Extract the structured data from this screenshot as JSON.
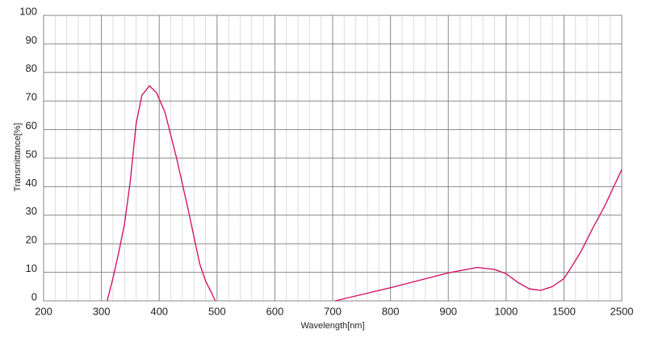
{
  "chart_data": {
    "type": "line",
    "x_label": "Wavelength[nm]",
    "y_label": "Transmittance[%]",
    "x_scale": "segmented",
    "x": [
      310,
      320,
      330,
      340,
      350,
      360,
      370,
      383,
      395,
      410,
      430,
      450,
      470,
      480,
      490,
      497,
      null,
      704,
      800,
      900,
      950,
      980,
      1000,
      1100,
      1200,
      1300,
      1400,
      1500,
      1650,
      1800,
      2000,
      2200,
      2500
    ],
    "series": [
      {
        "color": "#d0176b",
        "values": [
          0,
          8,
          17,
          27,
          42,
          62,
          72,
          75.3,
          73,
          66,
          50,
          32,
          13,
          7,
          3,
          0,
          null,
          0,
          4.6,
          9.8,
          11.7,
          11,
          9.5,
          6.5,
          4.2,
          3.7,
          5,
          7.8,
          12.5,
          17.5,
          25.5,
          33,
          46
        ]
      }
    ],
    "xlim": [
      200,
      2500
    ],
    "ylim": [
      0,
      100
    ],
    "xticks": [
      200,
      300,
      400,
      500,
      600,
      700,
      800,
      900,
      1000,
      1500,
      2500
    ],
    "yticks": [
      0,
      10,
      20,
      30,
      40,
      50,
      60,
      70,
      80,
      90,
      100
    ],
    "grid": true,
    "minor_grid_divisions": 5
  }
}
